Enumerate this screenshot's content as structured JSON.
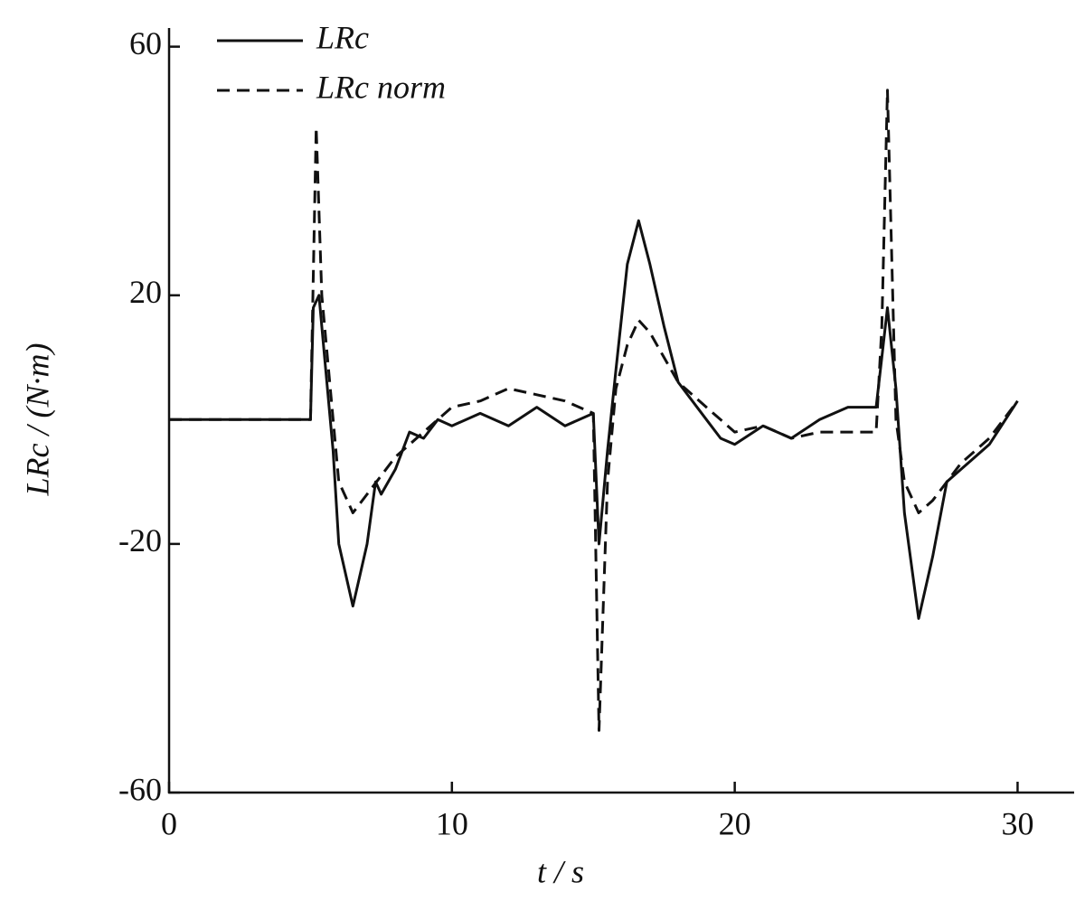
{
  "chart_data": {
    "type": "line",
    "xlabel": "t / s",
    "ylabel": "LRc / (N·m)",
    "xlim": [
      0,
      32
    ],
    "ylim": [
      -60,
      63
    ],
    "xticks": [
      0,
      10,
      20,
      30
    ],
    "yticks": [
      -60,
      -20,
      20,
      60
    ],
    "legend": "upper left",
    "series": [
      {
        "name": "LRc",
        "color": "#111111",
        "dash": "solid",
        "x": [
          0,
          5,
          5.1,
          5.3,
          5.5,
          5.8,
          6.0,
          6.5,
          7.0,
          7.3,
          7.5,
          8,
          8.5,
          9,
          9.5,
          10,
          11,
          12,
          13,
          14,
          15,
          15.2,
          15.5,
          15.8,
          16.2,
          16.6,
          17,
          17.5,
          18,
          19,
          19.5,
          20,
          21,
          22,
          23,
          24,
          25,
          25.2,
          25.4,
          25.7,
          26,
          26.5,
          27,
          27.5,
          28,
          29,
          30
        ],
        "values": [
          0,
          0,
          18,
          20,
          10,
          -5,
          -20,
          -30,
          -20,
          -10,
          -12,
          -8,
          -2,
          -3,
          0,
          -1,
          1,
          -1,
          2,
          -1,
          1,
          -20,
          -5,
          8,
          25,
          32,
          25,
          15,
          6,
          0,
          -3,
          -4,
          -1,
          -3,
          0,
          2,
          2,
          10,
          18,
          5,
          -15,
          -32,
          -22,
          -10,
          -8,
          -4,
          3
        ]
      },
      {
        "name": "LRc norm",
        "color": "#111111",
        "dash": "dashed",
        "x": [
          0,
          5,
          5.2,
          5.4,
          5.7,
          6.0,
          6.5,
          7,
          8,
          9,
          10,
          11,
          12,
          13,
          14,
          15,
          15.2,
          15.5,
          15.8,
          16.2,
          16.6,
          17,
          17.5,
          18,
          19,
          20,
          21,
          22,
          23,
          24,
          25,
          25.2,
          25.4,
          25.7,
          26,
          26.5,
          27,
          28,
          29,
          30
        ],
        "values": [
          0,
          0,
          47,
          20,
          5,
          -10,
          -15,
          -12,
          -6,
          -2,
          2,
          3,
          5,
          4,
          3,
          1,
          -50,
          -10,
          5,
          12,
          16,
          14,
          10,
          6,
          2,
          -2,
          -1,
          -3,
          -2,
          -2,
          -2,
          15,
          53,
          0,
          -10,
          -15,
          -13,
          -7,
          -3,
          3
        ]
      }
    ]
  }
}
